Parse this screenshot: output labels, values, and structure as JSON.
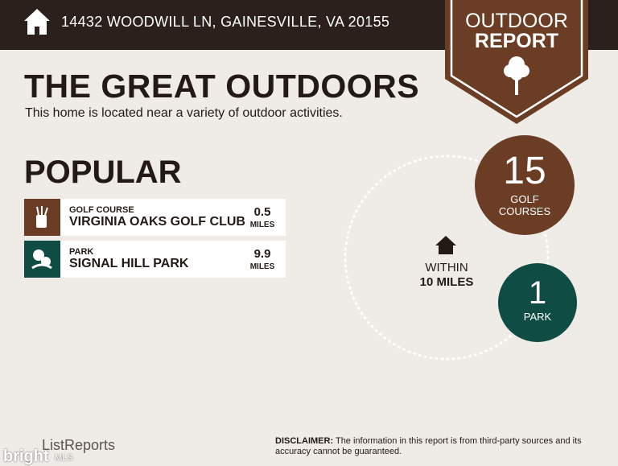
{
  "header": {
    "address": "14432 WOODWILL LN, GAINESVILLE, VA 20155"
  },
  "badge": {
    "line1": "OUTDOOR",
    "line2": "REPORT"
  },
  "title": "THE GREAT OUTDOORS",
  "subtitle": "This home is located near a variety of outdoor activities.",
  "section": "POPULAR",
  "items": [
    {
      "category": "GOLF COURSE",
      "name": "VIRGINIA OAKS GOLF CLUB",
      "distance": 0.5,
      "unit": "MILES"
    },
    {
      "category": "PARK",
      "name": "SIGNAL HILL PARK",
      "distance": 9.9,
      "unit": "MILES"
    }
  ],
  "radius": {
    "line1": "WITHIN",
    "line2": "10 MILES"
  },
  "counts": [
    {
      "count": 15,
      "label": "GOLF COURSES"
    },
    {
      "count": 1,
      "label": "PARK"
    }
  ],
  "footer": {
    "logo": "ListReports",
    "disclaimer_label": "DISCLAIMER:",
    "disclaimer": "The information in this report is from third-party sources and its accuracy cannot be guaranteed.",
    "watermark": "bright",
    "watermark_mls": "MLS"
  }
}
